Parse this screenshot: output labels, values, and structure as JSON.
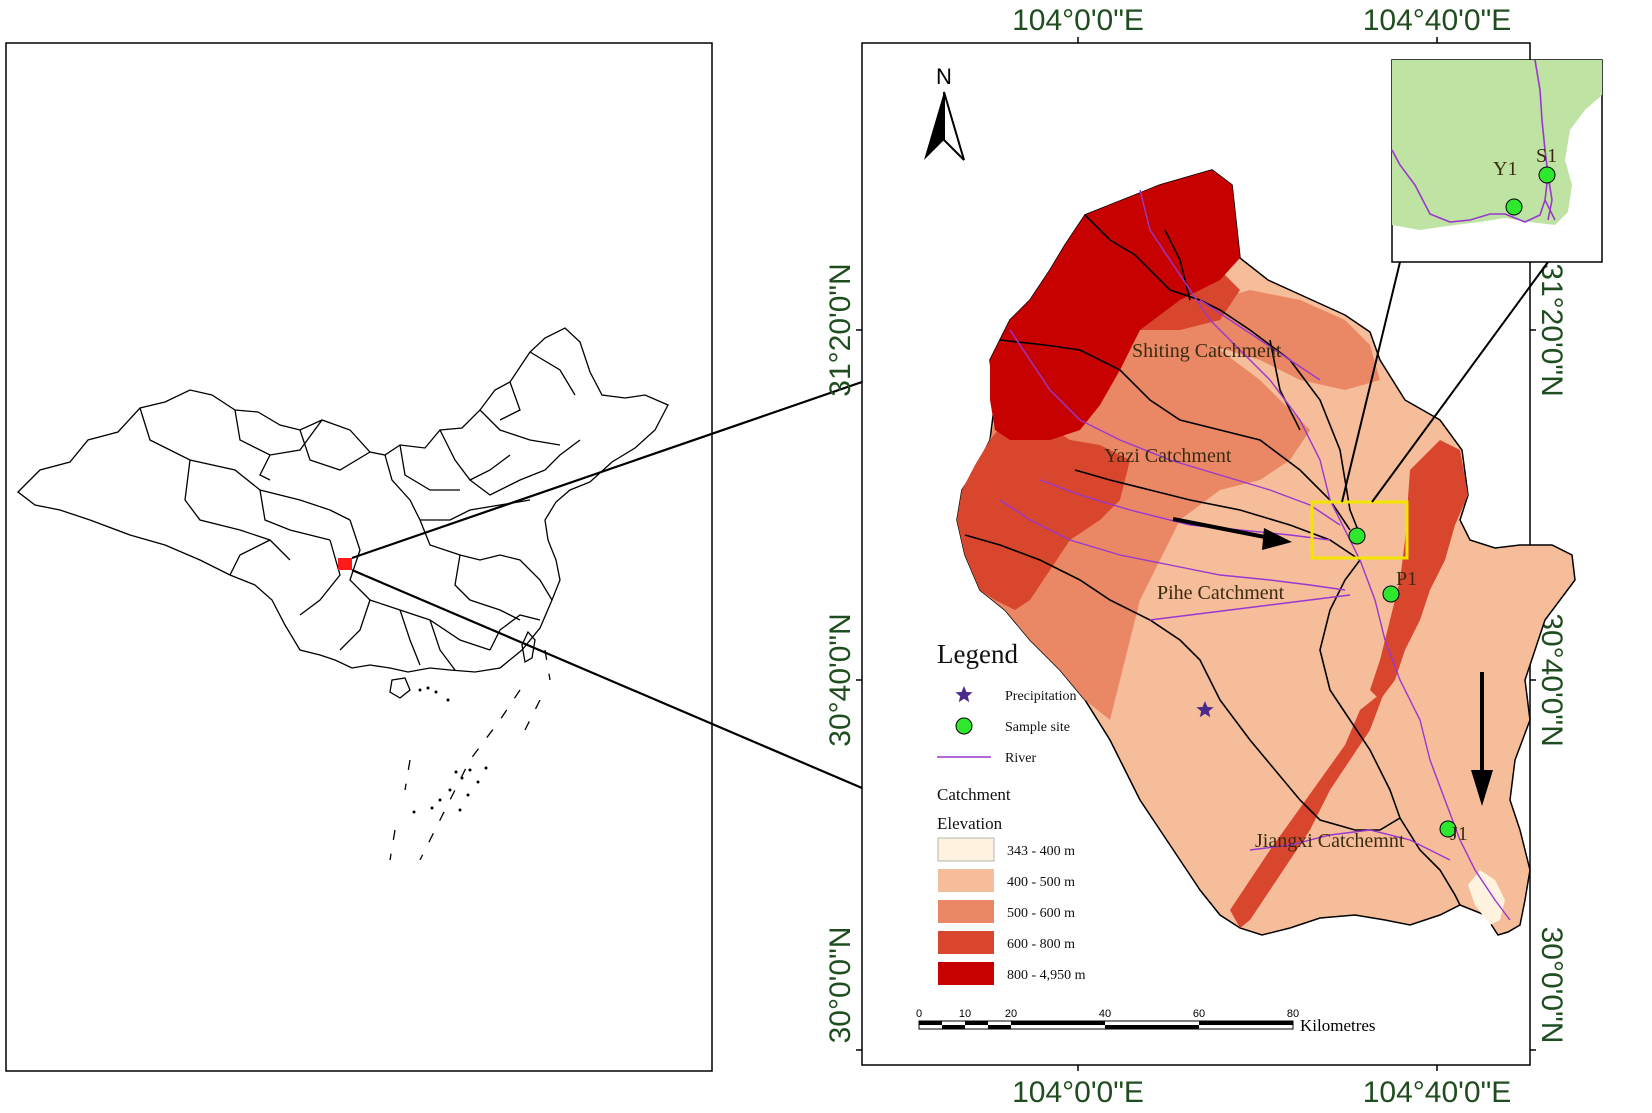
{
  "colors": {
    "elev_343_400": "#fff3e0",
    "elev_400_500": "#f6bd9a",
    "elev_500_600": "#ea8865",
    "elev_600_800": "#d9462e",
    "elev_800_4950": "#c70000",
    "inset_land": "#bfe3a3",
    "river": "#9a37d0",
    "sample_site": "#2ee82e",
    "highlight_box": "#f2e600",
    "location_marker": "#ff1a1a",
    "coord_text": "#1f4d1f"
  },
  "graticule": {
    "top_labels": [
      "104°0'0\"E",
      "104°40'0\"E"
    ],
    "bottom_labels": [
      "104°0'0\"E",
      "104°40'0\"E"
    ],
    "left_labels": [
      "31°20'0\"N",
      "30°40'0\"N",
      "30°0'0\"N"
    ],
    "right_labels": [
      "31°20'0\"N",
      "30°40'0\"N",
      "30°0'0\"N"
    ]
  },
  "north_arrow": {
    "label": "N"
  },
  "catchments": {
    "shiting": "Shiting Catchment",
    "yazi": "Yazi Catchment",
    "pihe": "Pihe Catchment",
    "jiangxi": "Jiangxi Catchemnt"
  },
  "sample_sites": {
    "p1": "P1",
    "j1": "J1",
    "s1": "S1",
    "y1": "Y1"
  },
  "legend": {
    "title": "Legend",
    "precipitation": "Precipitation",
    "sample_site": "Sample site",
    "river": "River",
    "catchment": "Catchment",
    "elevation": "Elevation",
    "classes": [
      "343 - 400 m",
      "400 - 500 m",
      "500 - 600 m",
      "600 - 800 m",
      "800 - 4,950 m"
    ]
  },
  "scale_bar": {
    "ticks": [
      "0",
      "10",
      "20",
      "40",
      "60",
      "80"
    ],
    "unit": "Kilometres"
  }
}
